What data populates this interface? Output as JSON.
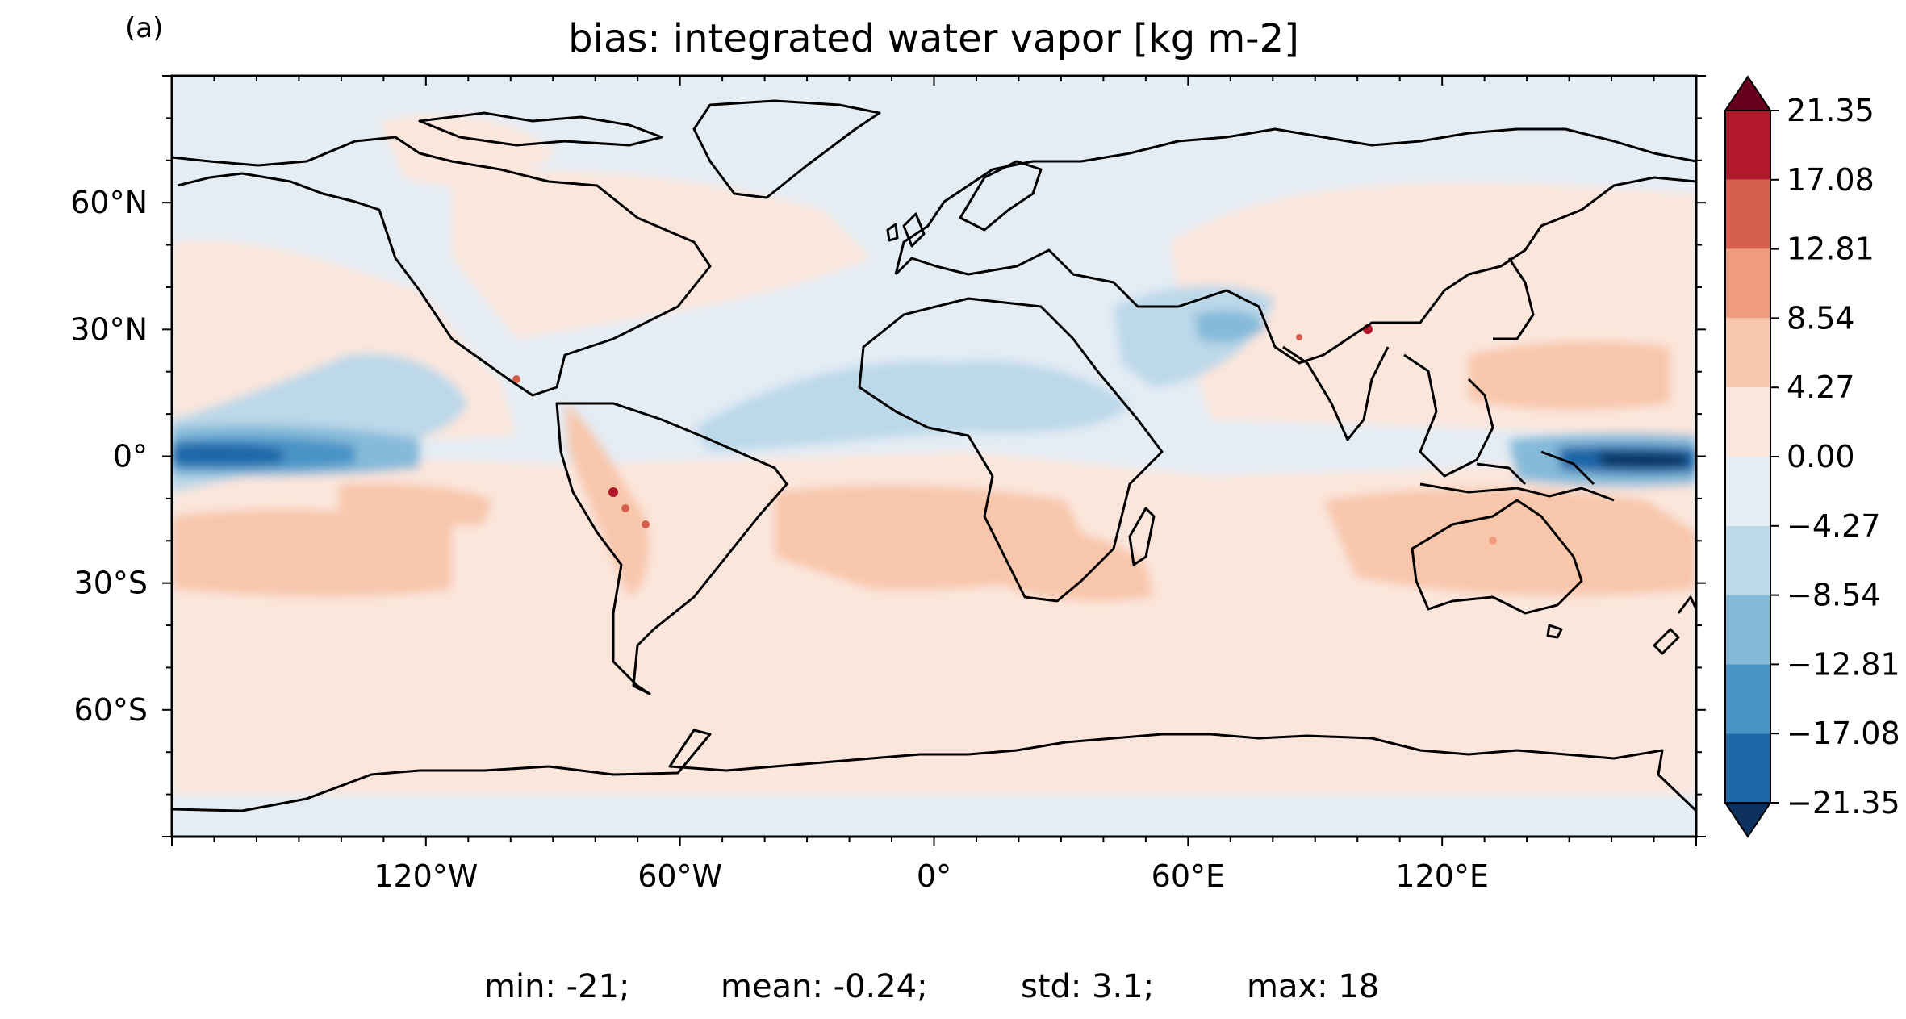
{
  "panel_label": "(a)",
  "title": "bias: integrated water vapor [kg m-2]",
  "stats": {
    "min": "min: -21;",
    "mean": "mean: -0.24;",
    "std": "std: 3.1;",
    "max": "max: 18"
  },
  "map": {
    "projection": "PlateCarree",
    "lon_range": [
      -180,
      180
    ],
    "lat_range": [
      -90,
      90
    ],
    "lon_ticks": [
      {
        "value": -120,
        "label": "120°W"
      },
      {
        "value": -60,
        "label": "60°W"
      },
      {
        "value": 0,
        "label": "0°"
      },
      {
        "value": 60,
        "label": "60°E"
      },
      {
        "value": 120,
        "label": "120°E"
      }
    ],
    "lat_ticks": [
      {
        "value": 60,
        "label": "60°N"
      },
      {
        "value": 30,
        "label": "30°N"
      },
      {
        "value": 0,
        "label": "0°"
      },
      {
        "value": -30,
        "label": "30°S"
      },
      {
        "value": -60,
        "label": "60°S"
      }
    ]
  },
  "colorbar": {
    "extend": "both",
    "levels": [
      "21.35",
      "17.08",
      "12.81",
      "8.54",
      "4.27",
      "0.00",
      "−4.27",
      "−8.54",
      "−12.81",
      "−17.08",
      "−21.35"
    ],
    "colors": [
      "#67001f",
      "#b2182b",
      "#d6604d",
      "#f09d7f",
      "#f8c6ab",
      "#fbe6dc",
      "#e4ecf4",
      "#bcd8e9",
      "#85bad9",
      "#4893c6",
      "#1f66a7",
      "#0b315c"
    ]
  },
  "chart_data": {
    "type": "heatmap",
    "title": "bias: integrated water vapor [kg m-2]",
    "units": "kg m-2",
    "xlim": [
      -180,
      180
    ],
    "ylim": [
      -90,
      90
    ],
    "summary": {
      "min": -21,
      "mean": -0.24,
      "std": 3.1,
      "max": 18
    },
    "regions": [
      {
        "region": "equatorial East Pacific (near 150–180°W, 0°)",
        "value_range": [
          -21.35,
          -12.81
        ]
      },
      {
        "region": "equatorial West Pacific (near 160–180°E, 0°)",
        "value_range": [
          -21.35,
          -12.81
        ]
      },
      {
        "region": "North Pacific subtropics",
        "value_range": [
          -8.54,
          -4.27
        ]
      },
      {
        "region": "Tropical Atlantic / North Africa",
        "value_range": [
          -8.54,
          -4.27
        ]
      },
      {
        "region": "Arabian Peninsula / Iran",
        "value_range": [
          -12.81,
          -4.27
        ]
      },
      {
        "region": "South Pacific (near 30°S)",
        "value_range": [
          4.27,
          8.54
        ]
      },
      {
        "region": "South Atlantic / Southern Africa",
        "value_range": [
          4.27,
          8.54
        ]
      },
      {
        "region": "Australia / southeast Indian Ocean",
        "value_range": [
          4.27,
          8.54
        ]
      },
      {
        "region": "Northwest Pacific (near 20°N)",
        "value_range": [
          4.27,
          8.54
        ]
      },
      {
        "region": "Andes",
        "value_range": [
          8.54,
          17.08
        ]
      },
      {
        "region": "Tibetan Plateau margins",
        "value_range": [
          8.54,
          17.08
        ]
      },
      {
        "region": "Southern Ocean and most mid-latitudes",
        "value_range": [
          0.0,
          4.27
        ]
      },
      {
        "region": "Arctic, Antarctica and northern continents",
        "value_range": [
          -4.27,
          0.0
        ]
      }
    ]
  }
}
